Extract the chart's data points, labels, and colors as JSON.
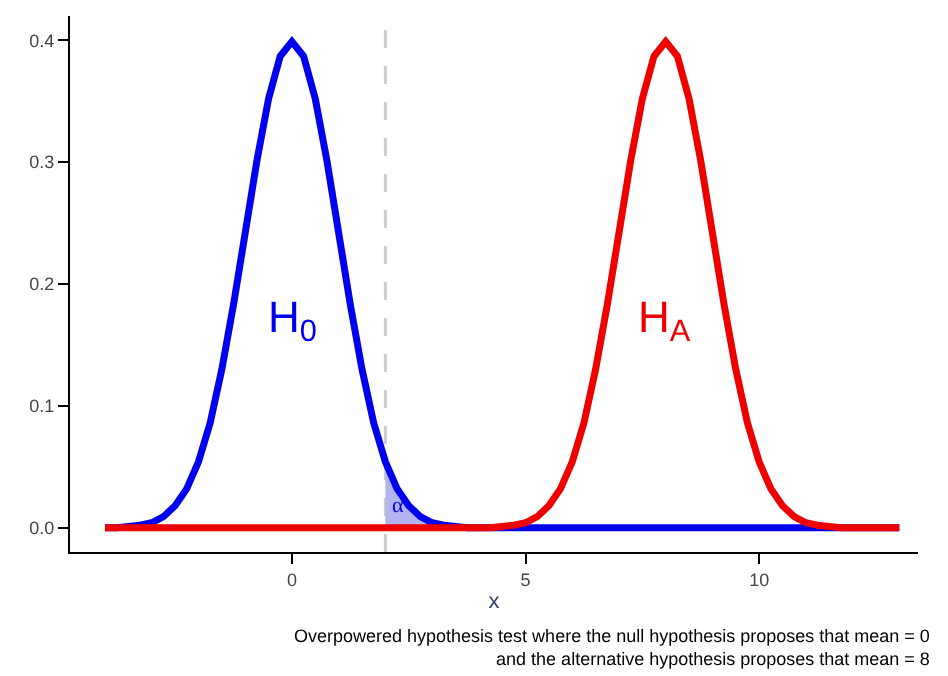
{
  "chart_data": {
    "type": "line",
    "xlabel": "x",
    "xlim": [
      -4.75,
      13.4
    ],
    "xticks": [
      0,
      5,
      10
    ],
    "ylim": [
      -0.02,
      0.42
    ],
    "yticks": [
      {
        "value": 0,
        "label": "0.0"
      },
      0.1,
      0.2,
      0.3,
      0.4
    ],
    "grid": false,
    "marker": "none",
    "line_style": "solid",
    "series": [
      {
        "type": "area",
        "color": "#b3b3f0",
        "x": [
          2,
          2.25,
          2.5,
          2.75,
          3,
          3.25,
          3.5,
          3.75,
          4,
          5,
          6
        ],
        "values": [
          0.054,
          0.032,
          0.018,
          0.009,
          0.004,
          0.002,
          0.001,
          0,
          0,
          0,
          0
        ]
      },
      {
        "color": "#0000ee",
        "x": [
          -4,
          -3.75,
          -3.5,
          -3.25,
          -3,
          -2.75,
          -2.5,
          -2.25,
          -2,
          -1.75,
          -1.5,
          -1.25,
          -1,
          -0.75,
          -0.5,
          -0.25,
          0,
          0.25,
          0.5,
          0.75,
          1,
          1.25,
          1.5,
          1.75,
          2,
          2.25,
          2.5,
          2.75,
          3,
          3.25,
          3.5,
          3.75,
          4,
          5,
          6,
          7,
          8,
          9,
          10,
          11,
          12,
          13
        ],
        "values": [
          0,
          0,
          0.001,
          0.002,
          0.004,
          0.009,
          0.018,
          0.032,
          0.054,
          0.086,
          0.13,
          0.183,
          0.242,
          0.301,
          0.352,
          0.387,
          0.399,
          0.387,
          0.352,
          0.301,
          0.242,
          0.183,
          0.13,
          0.086,
          0.054,
          0.032,
          0.018,
          0.009,
          0.004,
          0.002,
          0.001,
          0,
          0,
          0,
          0,
          0,
          0,
          0,
          0,
          0,
          0,
          0
        ]
      },
      {
        "color": "#ee0000",
        "x": [
          -4,
          -3,
          -2,
          -1,
          0,
          1,
          2,
          3,
          4,
          4.25,
          4.5,
          4.75,
          5,
          5.25,
          5.5,
          5.75,
          6,
          6.25,
          6.5,
          6.75,
          7,
          7.25,
          7.5,
          7.75,
          8,
          8.25,
          8.5,
          8.75,
          9,
          9.25,
          9.5,
          9.75,
          10,
          10.25,
          10.5,
          10.75,
          11,
          11.25,
          11.5,
          11.75,
          12,
          13
        ],
        "values": [
          0,
          0,
          0,
          0,
          0,
          0,
          0,
          0,
          0,
          0,
          0.001,
          0.002,
          0.004,
          0.009,
          0.018,
          0.032,
          0.054,
          0.086,
          0.13,
          0.183,
          0.242,
          0.301,
          0.352,
          0.387,
          0.399,
          0.387,
          0.352,
          0.301,
          0.242,
          0.183,
          0.13,
          0.086,
          0.054,
          0.032,
          0.018,
          0.009,
          0.004,
          0.002,
          0.001,
          0,
          0,
          0
        ]
      }
    ],
    "ref_lines": [
      {
        "axis": "x",
        "value": 2,
        "color": "#cccccc",
        "line_style": "dashed"
      }
    ],
    "annotations": [
      "H$_{0}$",
      "H$_{A}$",
      "α",
      "Overpowered hypothesis test where the null hypothesis proposes that mean = 0\nand the alternative hypothesis proposes that mean = 8"
    ]
  }
}
